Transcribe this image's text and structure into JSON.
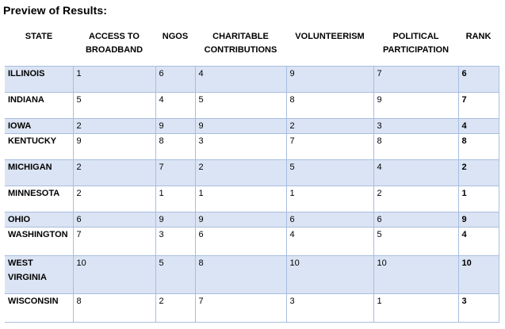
{
  "title": "Preview of Results:",
  "columns": [
    {
      "l1": "STATE",
      "l2": ""
    },
    {
      "l1": "ACCESS TO",
      "l2": "BROADBAND"
    },
    {
      "l1": "NGOS",
      "l2": ""
    },
    {
      "l1": "CHARITABLE",
      "l2": "CONTRIBUTIONS"
    },
    {
      "l1": "VOLUNTEERISM",
      "l2": ""
    },
    {
      "l1": "POLITICAL",
      "l2": "PARTICIPATION"
    },
    {
      "l1": "RANK",
      "l2": ""
    }
  ],
  "rows": [
    {
      "state": "ILLINOIS",
      "broadband": "1",
      "ngos": "6",
      "charitable": "4",
      "volunteerism": "9",
      "political": "7",
      "rank": "6"
    },
    {
      "state": "INDIANA",
      "broadband": "5",
      "ngos": "4",
      "charitable": "5",
      "volunteerism": "8",
      "political": "9",
      "rank": "7"
    },
    {
      "state": "IOWA",
      "broadband": "2",
      "ngos": "9",
      "charitable": "9",
      "volunteerism": "2",
      "political": "3",
      "rank": "4"
    },
    {
      "state": "KENTUCKY",
      "broadband": "9",
      "ngos": "8",
      "charitable": "3",
      "volunteerism": "7",
      "political": "8",
      "rank": "8"
    },
    {
      "state": "MICHIGAN",
      "broadband": "2",
      "ngos": "7",
      "charitable": "2",
      "volunteerism": "5",
      "political": "4",
      "rank": "2"
    },
    {
      "state": "MINNESOTA",
      "broadband": "2",
      "ngos": "1",
      "charitable": "1",
      "volunteerism": "1",
      "political": "2",
      "rank": "1"
    },
    {
      "state": "OHIO",
      "broadband": "6",
      "ngos": "9",
      "charitable": "9",
      "volunteerism": "6",
      "political": "6",
      "rank": "9"
    },
    {
      "state": "WASHINGTON",
      "broadband": "7",
      "ngos": "3",
      "charitable": "6",
      "volunteerism": "4",
      "political": "5",
      "rank": "4"
    },
    {
      "state": "WEST VIRGINIA",
      "broadband": "10",
      "ngos": "5",
      "charitable": "8",
      "volunteerism": "10",
      "political": "10",
      "rank": "10"
    },
    {
      "state": "WISCONSIN",
      "broadband": "8",
      "ngos": "2",
      "charitable": "7",
      "volunteerism": "3",
      "political": "1",
      "rank": "3"
    }
  ]
}
